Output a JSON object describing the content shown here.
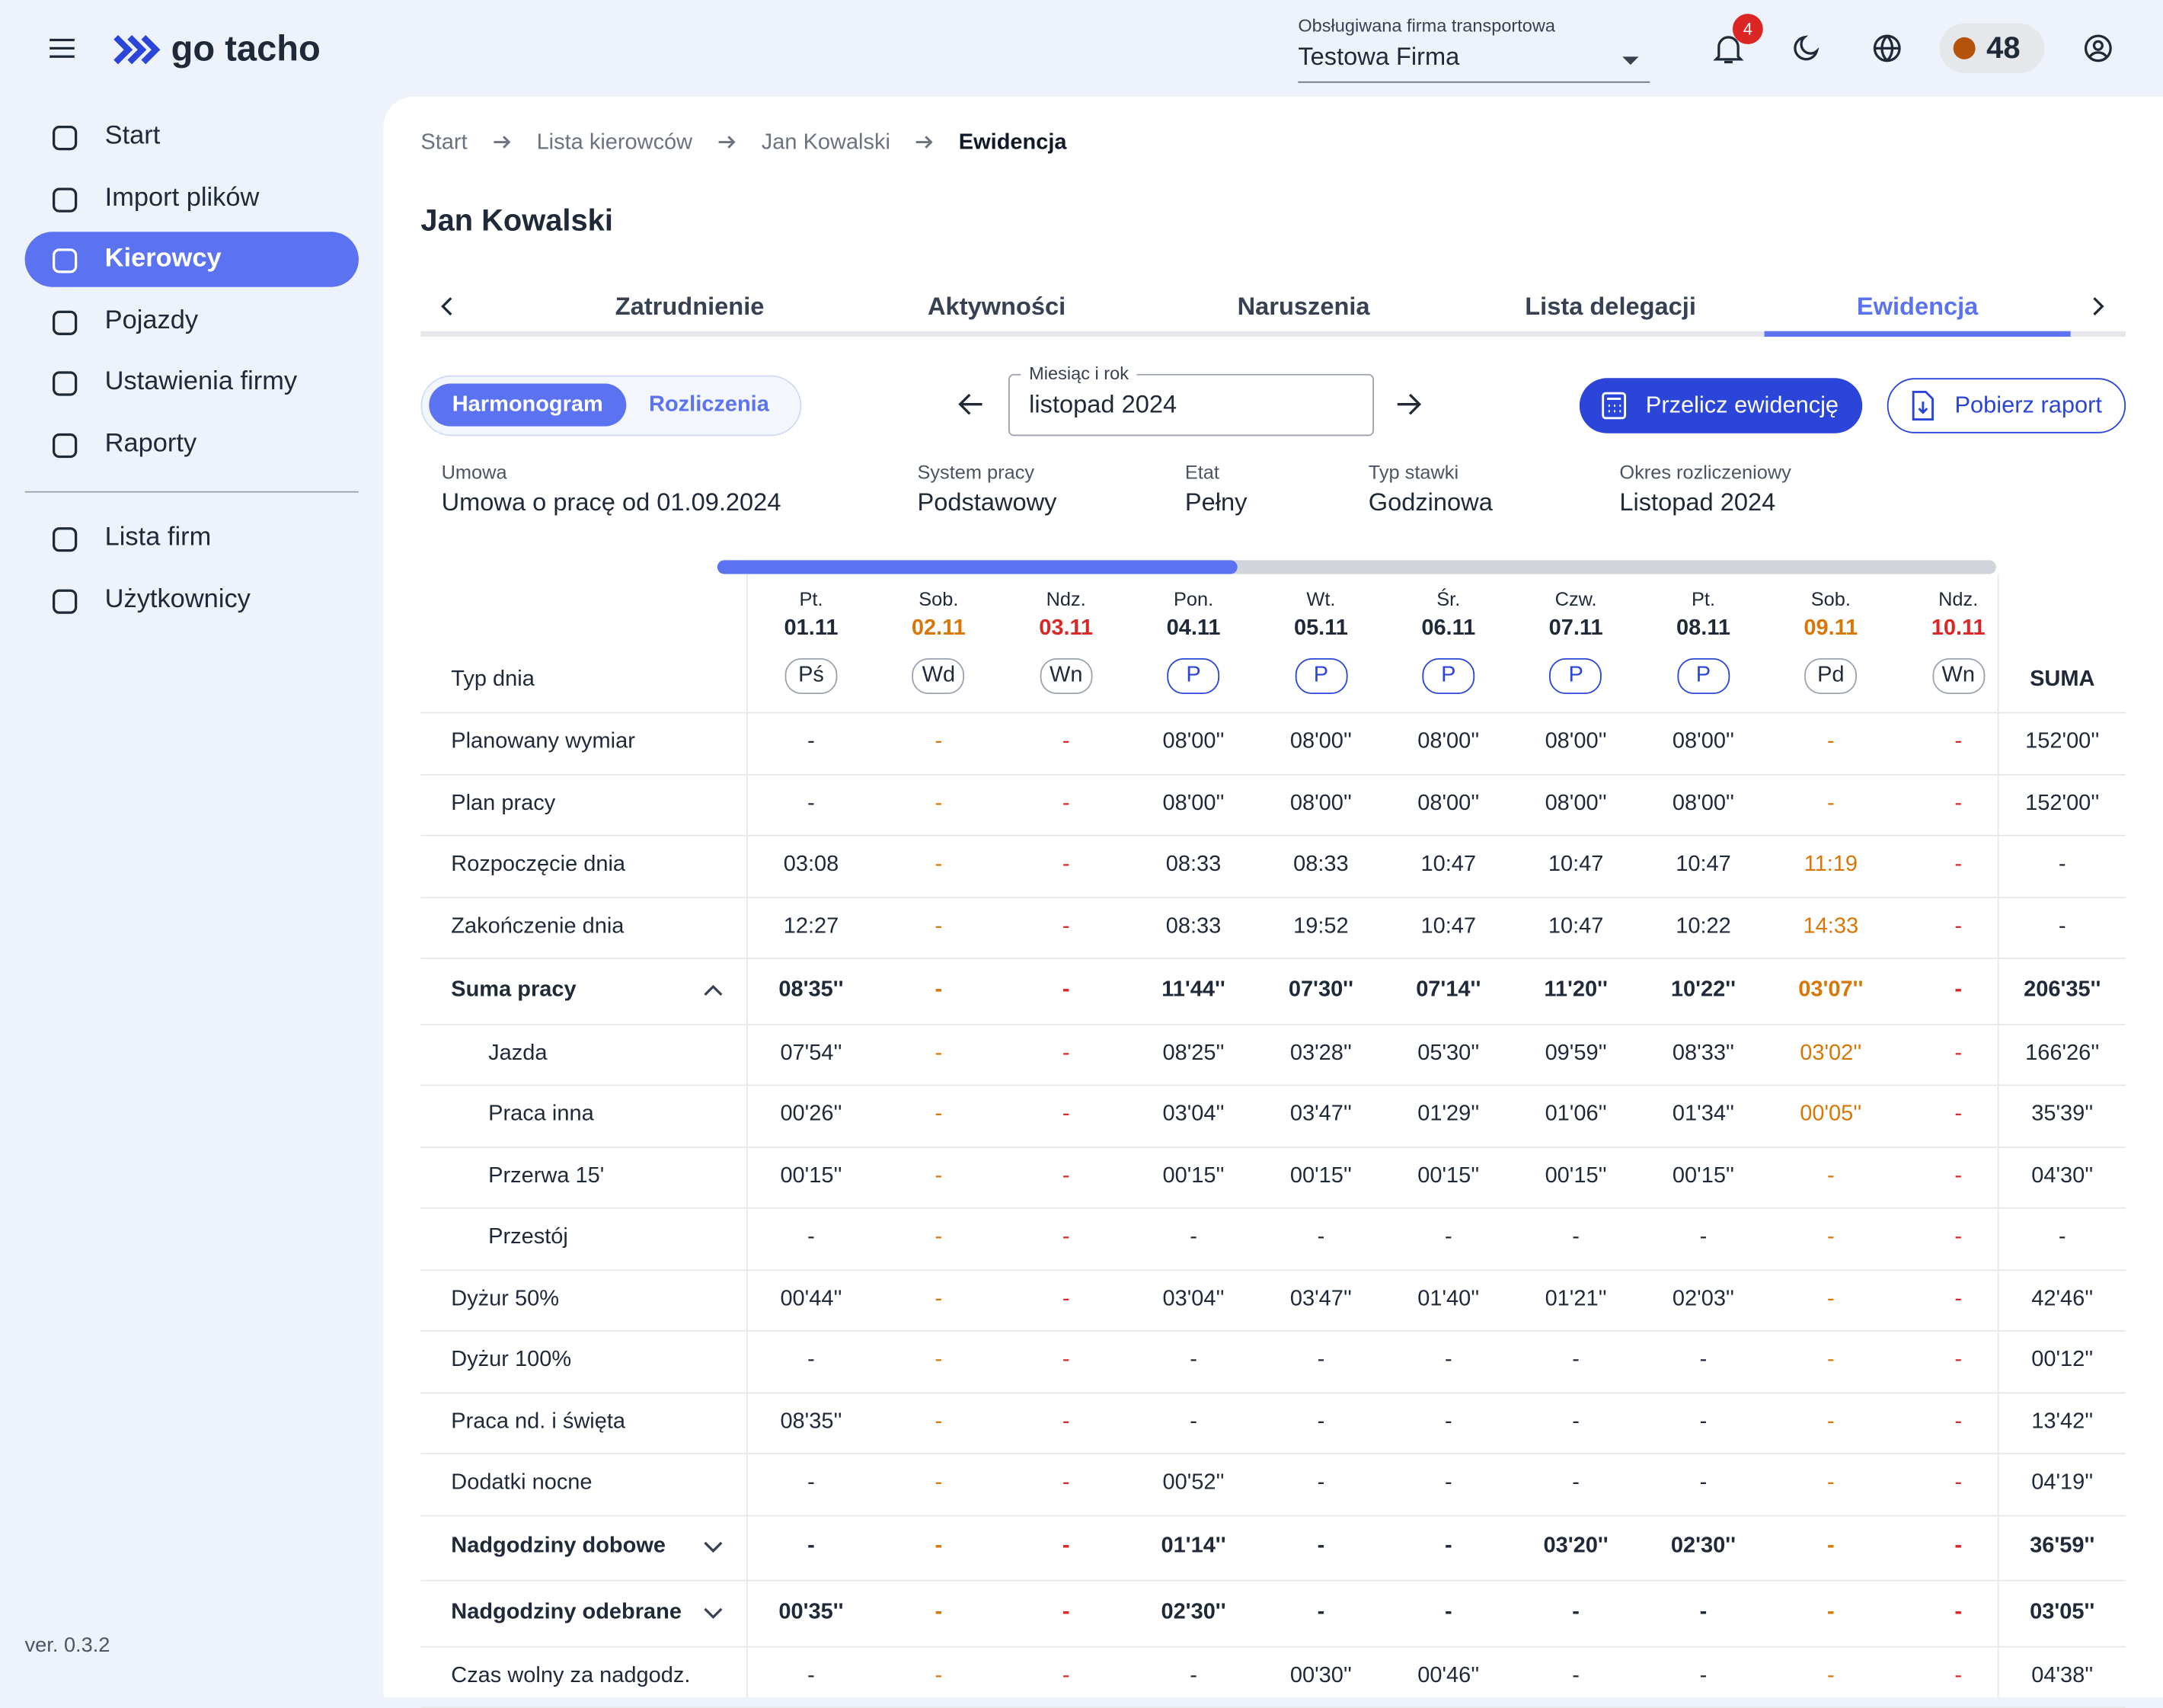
{
  "header": {
    "brand": "go tacho",
    "company_label": "Obsługiwana firma transportowa",
    "company": "Testowa Firma",
    "notifications": "4",
    "coins": "48"
  },
  "sidebar": {
    "items": [
      "Start",
      "Import plików",
      "Kierowcy",
      "Pojazdy",
      "Ustawienia firmy",
      "Raporty"
    ],
    "items2": [
      "Lista firm",
      "Użytkownicy"
    ],
    "version": "ver. 0.3.2"
  },
  "breadcrumb": [
    "Start",
    "Lista kierowców",
    "Jan Kowalski",
    "Ewidencja"
  ],
  "page_title": "Jan Kowalski",
  "tabs": [
    "Zatrudnienie",
    "Aktywności",
    "Naruszenia",
    "Lista delegacji",
    "Ewidencja"
  ],
  "toggle": [
    "Harmonogram",
    "Rozliczenia"
  ],
  "month": {
    "label": "Miesiąc i rok",
    "value": "listopad 2024"
  },
  "buttons": [
    "Przelicz ewidencję",
    "Pobierz raport"
  ],
  "info": [
    {
      "label": "Umowa",
      "value": "Umowa o pracę od 01.09.2024"
    },
    {
      "label": "System pracy",
      "value": "Podstawowy"
    },
    {
      "label": "Etat",
      "value": "Pełny"
    },
    {
      "label": "Typ stawki",
      "value": "Godzinowa"
    },
    {
      "label": "Okres rozliczeniowy",
      "value": "Listopad 2024"
    }
  ],
  "table": {
    "row_header": "Typ dnia",
    "sum_header": "SUMA",
    "days": [
      {
        "weekday": "Pt.",
        "date": "01.11",
        "type": "Pś",
        "color": "#1f2937"
      },
      {
        "weekday": "Sob.",
        "date": "02.11",
        "type": "Wd",
        "color": "#d97706"
      },
      {
        "weekday": "Ndz.",
        "date": "03.11",
        "type": "Wn",
        "color": "#dc2626"
      },
      {
        "weekday": "Pon.",
        "date": "04.11",
        "type": "P",
        "color": "#1f2937"
      },
      {
        "weekday": "Wt.",
        "date": "05.11",
        "type": "P",
        "color": "#1f2937"
      },
      {
        "weekday": "Śr.",
        "date": "06.11",
        "type": "P",
        "color": "#1f2937"
      },
      {
        "weekday": "Czw.",
        "date": "07.11",
        "type": "P",
        "color": "#1f2937"
      },
      {
        "weekday": "Pt.",
        "date": "08.11",
        "type": "P",
        "color": "#1f2937"
      },
      {
        "weekday": "Sob.",
        "date": "09.11",
        "type": "Pd",
        "color": "#d97706"
      },
      {
        "weekday": "Ndz.",
        "date": "10.11",
        "type": "Wn",
        "color": "#dc2626"
      }
    ],
    "rows": [
      {
        "label": "Planowany wymiar",
        "values": [
          "-",
          "-",
          "-",
          "08'00''",
          "08'00''",
          "08'00''",
          "08'00''",
          "08'00''",
          "-",
          "-"
        ],
        "sum": "152'00''"
      },
      {
        "label": "Plan pracy",
        "values": [
          "-",
          "-",
          "-",
          "08'00''",
          "08'00''",
          "08'00''",
          "08'00''",
          "08'00''",
          "-",
          "-"
        ],
        "sum": "152'00''"
      },
      {
        "label": "Rozpoczęcie dnia",
        "values": [
          "03:08",
          "-",
          "-",
          "08:33",
          "08:33",
          "10:47",
          "10:47",
          "10:47",
          "11:19",
          "-"
        ],
        "sum": "-"
      },
      {
        "label": "Zakończenie dnia",
        "values": [
          "12:27",
          "-",
          "-",
          "08:33",
          "19:52",
          "10:47",
          "10:47",
          "10:22",
          "14:33",
          "-"
        ],
        "sum": "-"
      },
      {
        "label": "Suma pracy",
        "values": [
          "08'35''",
          "-",
          "-",
          "11'44''",
          "07'30''",
          "07'14''",
          "11'20''",
          "10'22''",
          "03'07''",
          "-"
        ],
        "sum": "206'35''",
        "bold": true,
        "expanded": true
      },
      {
        "label": "Jazda",
        "values": [
          "07'54''",
          "-",
          "-",
          "08'25''",
          "03'28''",
          "05'30''",
          "09'59''",
          "08'33''",
          "03'02''",
          "-"
        ],
        "sum": "166'26''",
        "indent": true
      },
      {
        "label": "Praca inna",
        "values": [
          "00'26''",
          "-",
          "-",
          "03'04''",
          "03'47''",
          "01'29''",
          "01'06''",
          "01'34''",
          "00'05''",
          "-"
        ],
        "sum": "35'39''",
        "indent": true
      },
      {
        "label": "Przerwa 15'",
        "values": [
          "00'15''",
          "-",
          "-",
          "00'15''",
          "00'15''",
          "00'15''",
          "00'15''",
          "00'15''",
          "-",
          "-"
        ],
        "sum": "04'30''",
        "indent": true
      },
      {
        "label": "Przestój",
        "values": [
          "-",
          "-",
          "-",
          "-",
          "-",
          "-",
          "-",
          "-",
          "-",
          "-"
        ],
        "sum": "-",
        "indent": true
      },
      {
        "label": "Dyżur 50%",
        "values": [
          "00'44''",
          "-",
          "-",
          "03'04''",
          "03'47''",
          "01'40''",
          "01'21''",
          "02'03''",
          "-",
          "-"
        ],
        "sum": "42'46''"
      },
      {
        "label": "Dyżur 100%",
        "values": [
          "-",
          "-",
          "-",
          "-",
          "-",
          "-",
          "-",
          "-",
          "-",
          "-"
        ],
        "sum": "00'12''"
      },
      {
        "label": "Praca nd. i święta",
        "values": [
          "08'35''",
          "-",
          "-",
          "-",
          "-",
          "-",
          "-",
          "-",
          "-",
          "-"
        ],
        "sum": "13'42''"
      },
      {
        "label": "Dodatki nocne",
        "values": [
          "-",
          "-",
          "-",
          "00'52''",
          "-",
          "-",
          "-",
          "-",
          "-",
          "-"
        ],
        "sum": "04'19''"
      },
      {
        "label": "Nadgodziny dobowe",
        "values": [
          "-",
          "-",
          "-",
          "01'14''",
          "-",
          "-",
          "03'20''",
          "02'30''",
          "-",
          "-"
        ],
        "sum": "36'59''",
        "bold": true,
        "expanded": false
      },
      {
        "label": "Nadgodziny odebrane",
        "values": [
          "00'35''",
          "-",
          "-",
          "02'30''",
          "-",
          "-",
          "-",
          "-",
          "-",
          "-"
        ],
        "sum": "03'05''",
        "bold": true,
        "expanded": false
      },
      {
        "label": "Czas wolny za nadgodz.",
        "values": [
          "-",
          "-",
          "-",
          "-",
          "00'30''",
          "00'46''",
          "-",
          "-",
          "-",
          "-"
        ],
        "sum": "04'38''"
      }
    ]
  }
}
